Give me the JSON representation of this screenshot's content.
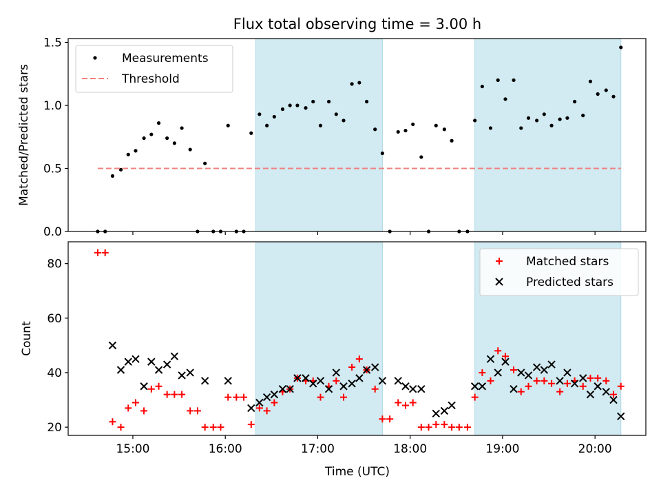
{
  "figure": {
    "title": "Flux total observing time = 3.00 h",
    "xlabel": "Time (UTC)",
    "xticks": [
      {
        "value": 15,
        "label": "15:00"
      },
      {
        "value": 16,
        "label": "16:00"
      },
      {
        "value": 17,
        "label": "17:00"
      },
      {
        "value": 18,
        "label": "18:00"
      },
      {
        "value": 19,
        "label": "19:00"
      },
      {
        "value": 20,
        "label": "20:00"
      }
    ],
    "xlim": [
      14.3,
      20.55
    ],
    "shaded_intervals": [
      [
        16.33,
        17.7
      ],
      [
        18.7,
        20.28
      ]
    ],
    "shade_color": "#add8e6",
    "gridlines": false
  },
  "chart_data": [
    {
      "type": "scatter",
      "ylabel": "Matched/Predicted stars",
      "ylim": [
        0,
        1.53
      ],
      "yticks": [
        {
          "value": 0,
          "label": "0.0"
        },
        {
          "value": 0.5,
          "label": "0.5"
        },
        {
          "value": 1.0,
          "label": "1.0"
        },
        {
          "value": 1.5,
          "label": "1.5"
        }
      ],
      "legend": {
        "position": "top-left"
      },
      "series": [
        {
          "name": "Measurements",
          "marker": "dot",
          "color": "#000000",
          "points": [
            [
              14.62,
              0
            ],
            [
              14.7,
              0
            ],
            [
              14.78,
              0.44
            ],
            [
              14.87,
              0.49
            ],
            [
              14.95,
              0.61
            ],
            [
              15.03,
              0.64
            ],
            [
              15.12,
              0.74
            ],
            [
              15.2,
              0.77
            ],
            [
              15.28,
              0.86
            ],
            [
              15.37,
              0.74
            ],
            [
              15.45,
              0.7
            ],
            [
              15.53,
              0.82
            ],
            [
              15.62,
              0.65
            ],
            [
              15.7,
              0
            ],
            [
              15.78,
              0.54
            ],
            [
              15.87,
              0
            ],
            [
              15.95,
              0
            ],
            [
              16.03,
              0.84
            ],
            [
              16.12,
              0
            ],
            [
              16.2,
              0
            ],
            [
              16.28,
              0.78
            ],
            [
              16.37,
              0.93
            ],
            [
              16.45,
              0.84
            ],
            [
              16.53,
              0.91
            ],
            [
              16.62,
              0.97
            ],
            [
              16.7,
              1.0
            ],
            [
              16.78,
              1.0
            ],
            [
              16.87,
              0.98
            ],
            [
              16.95,
              1.03
            ],
            [
              17.03,
              0.84
            ],
            [
              17.12,
              1.03
            ],
            [
              17.2,
              0.93
            ],
            [
              17.28,
              0.88
            ],
            [
              17.37,
              1.17
            ],
            [
              17.45,
              1.18
            ],
            [
              17.53,
              1.03
            ],
            [
              17.62,
              0.81
            ],
            [
              17.7,
              0.62
            ],
            [
              17.78,
              0
            ],
            [
              17.87,
              0.79
            ],
            [
              17.95,
              0.8
            ],
            [
              18.03,
              0.85
            ],
            [
              18.12,
              0.59
            ],
            [
              18.2,
              0
            ],
            [
              18.28,
              0.84
            ],
            [
              18.37,
              0.81
            ],
            [
              18.45,
              0.72
            ],
            [
              18.53,
              0
            ],
            [
              18.62,
              0
            ],
            [
              18.7,
              0.88
            ],
            [
              18.78,
              1.15
            ],
            [
              18.87,
              0.82
            ],
            [
              18.95,
              1.2
            ],
            [
              19.03,
              1.05
            ],
            [
              19.12,
              1.2
            ],
            [
              19.2,
              0.82
            ],
            [
              19.28,
              0.9
            ],
            [
              19.37,
              0.88
            ],
            [
              19.45,
              0.93
            ],
            [
              19.53,
              0.84
            ],
            [
              19.62,
              0.89
            ],
            [
              19.7,
              0.9
            ],
            [
              19.78,
              1.03
            ],
            [
              19.87,
              0.92
            ],
            [
              19.95,
              1.19
            ],
            [
              20.03,
              1.09
            ],
            [
              20.12,
              1.12
            ],
            [
              20.2,
              1.07
            ],
            [
              20.28,
              1.46
            ]
          ]
        },
        {
          "name": "Threshold",
          "type": "line",
          "style": "dashed",
          "color": "#f08080",
          "points": [
            [
              14.62,
              0.5
            ],
            [
              20.28,
              0.5
            ]
          ]
        }
      ]
    },
    {
      "type": "scatter",
      "ylabel": "Count",
      "ylim": [
        17,
        88
      ],
      "yticks": [
        {
          "value": 20,
          "label": "20"
        },
        {
          "value": 40,
          "label": "40"
        },
        {
          "value": 60,
          "label": "60"
        },
        {
          "value": 80,
          "label": "80"
        }
      ],
      "legend": {
        "position": "top-right"
      },
      "series": [
        {
          "name": "Matched stars",
          "marker": "plus",
          "color": "#ff0000",
          "points": [
            [
              14.62,
              84
            ],
            [
              14.7,
              84
            ],
            [
              14.78,
              22
            ],
            [
              14.87,
              20
            ],
            [
              14.95,
              27
            ],
            [
              15.03,
              29
            ],
            [
              15.12,
              26
            ],
            [
              15.2,
              34
            ],
            [
              15.28,
              35
            ],
            [
              15.37,
              32
            ],
            [
              15.45,
              32
            ],
            [
              15.53,
              32
            ],
            [
              15.62,
              26
            ],
            [
              15.7,
              26
            ],
            [
              15.78,
              20
            ],
            [
              15.87,
              20
            ],
            [
              15.95,
              20
            ],
            [
              16.03,
              31
            ],
            [
              16.12,
              31
            ],
            [
              16.2,
              31
            ],
            [
              16.28,
              21
            ],
            [
              16.37,
              27
            ],
            [
              16.45,
              26
            ],
            [
              16.53,
              29
            ],
            [
              16.62,
              33
            ],
            [
              16.7,
              34
            ],
            [
              16.78,
              38
            ],
            [
              16.87,
              37
            ],
            [
              16.95,
              37
            ],
            [
              17.03,
              31
            ],
            [
              17.12,
              35
            ],
            [
              17.2,
              37
            ],
            [
              17.28,
              31
            ],
            [
              17.37,
              42
            ],
            [
              17.45,
              45
            ],
            [
              17.53,
              41
            ],
            [
              17.62,
              34
            ],
            [
              17.7,
              23
            ],
            [
              17.78,
              23
            ],
            [
              17.87,
              29
            ],
            [
              17.95,
              28
            ],
            [
              18.03,
              29
            ],
            [
              18.12,
              20
            ],
            [
              18.2,
              20
            ],
            [
              18.28,
              21
            ],
            [
              18.37,
              21
            ],
            [
              18.45,
              20
            ],
            [
              18.53,
              20
            ],
            [
              18.62,
              20
            ],
            [
              18.7,
              31
            ],
            [
              18.78,
              40
            ],
            [
              18.87,
              37
            ],
            [
              18.95,
              48
            ],
            [
              19.03,
              46
            ],
            [
              19.12,
              41
            ],
            [
              19.2,
              33
            ],
            [
              19.28,
              35
            ],
            [
              19.37,
              37
            ],
            [
              19.45,
              37
            ],
            [
              19.53,
              36
            ],
            [
              19.62,
              33
            ],
            [
              19.7,
              36
            ],
            [
              19.78,
              37
            ],
            [
              19.87,
              35
            ],
            [
              19.95,
              38
            ],
            [
              20.03,
              38
            ],
            [
              20.12,
              37
            ],
            [
              20.2,
              32
            ],
            [
              20.28,
              35
            ]
          ]
        },
        {
          "name": "Predicted stars",
          "marker": "x",
          "color": "#000000",
          "points": [
            [
              14.78,
              50
            ],
            [
              14.87,
              41
            ],
            [
              14.95,
              44
            ],
            [
              15.03,
              45
            ],
            [
              15.12,
              35
            ],
            [
              15.2,
              44
            ],
            [
              15.28,
              41
            ],
            [
              15.37,
              43
            ],
            [
              15.45,
              46
            ],
            [
              15.53,
              39
            ],
            [
              15.62,
              40
            ],
            [
              15.78,
              37
            ],
            [
              16.03,
              37
            ],
            [
              16.28,
              27
            ],
            [
              16.37,
              29
            ],
            [
              16.45,
              31
            ],
            [
              16.53,
              32
            ],
            [
              16.62,
              34
            ],
            [
              16.7,
              34
            ],
            [
              16.78,
              38
            ],
            [
              16.87,
              38
            ],
            [
              16.95,
              36
            ],
            [
              17.03,
              37
            ],
            [
              17.12,
              34
            ],
            [
              17.2,
              40
            ],
            [
              17.28,
              35
            ],
            [
              17.37,
              36
            ],
            [
              17.45,
              38
            ],
            [
              17.53,
              41
            ],
            [
              17.62,
              42
            ],
            [
              17.7,
              37
            ],
            [
              17.87,
              37
            ],
            [
              17.95,
              35
            ],
            [
              18.03,
              34
            ],
            [
              18.12,
              34
            ],
            [
              18.28,
              25
            ],
            [
              18.37,
              26
            ],
            [
              18.45,
              28
            ],
            [
              18.7,
              35
            ],
            [
              18.78,
              35
            ],
            [
              18.87,
              45
            ],
            [
              18.95,
              40
            ],
            [
              19.03,
              44
            ],
            [
              19.12,
              34
            ],
            [
              19.2,
              40
            ],
            [
              19.28,
              39
            ],
            [
              19.37,
              42
            ],
            [
              19.45,
              41
            ],
            [
              19.53,
              43
            ],
            [
              19.62,
              37
            ],
            [
              19.7,
              40
            ],
            [
              19.78,
              36
            ],
            [
              19.87,
              38
            ],
            [
              19.95,
              32
            ],
            [
              20.03,
              35
            ],
            [
              20.12,
              33
            ],
            [
              20.2,
              30
            ],
            [
              20.28,
              24
            ]
          ]
        }
      ]
    }
  ]
}
